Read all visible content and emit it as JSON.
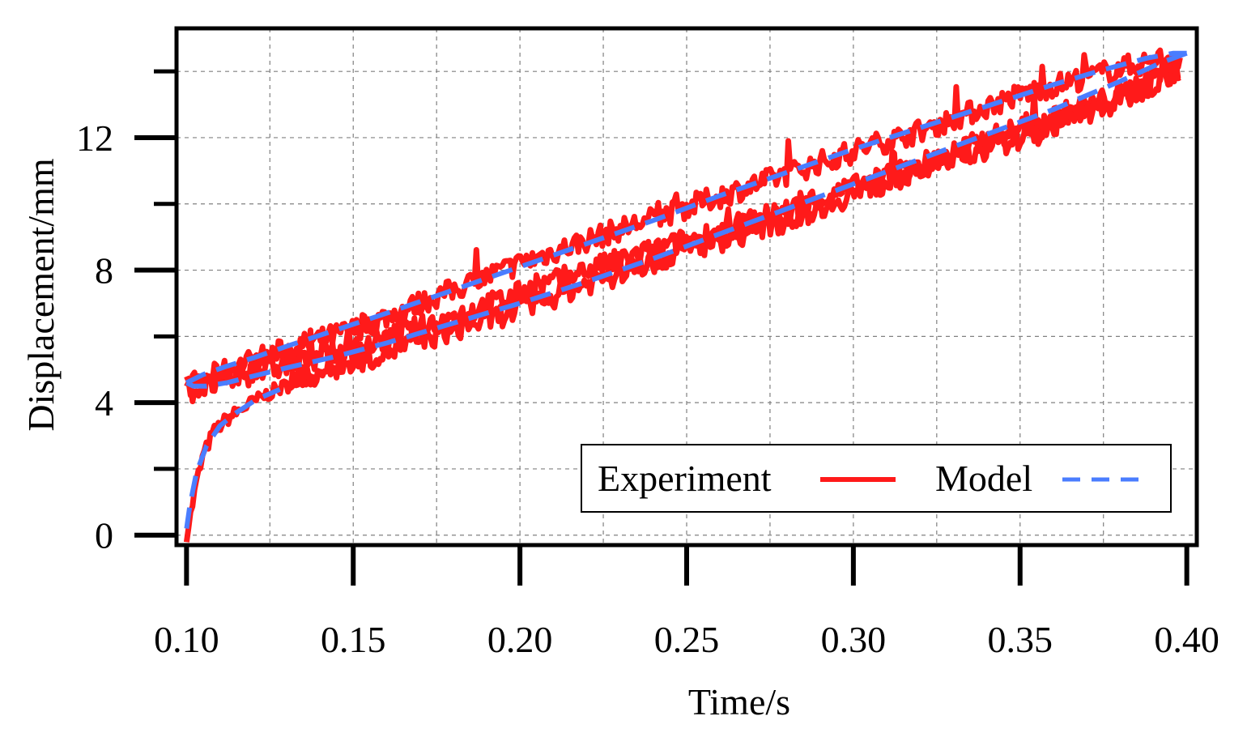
{
  "chart_data": {
    "type": "line",
    "title": "",
    "xlabel": "Time/s",
    "ylabel": "Displacement/mm",
    "xlim": [
      0.097,
      0.403
    ],
    "ylim": [
      -0.3,
      15.3
    ],
    "xticks": [
      0.1,
      0.15,
      0.2,
      0.25,
      0.3,
      0.35,
      0.4
    ],
    "xtick_labels": [
      "0.10",
      "0.15",
      "0.20",
      "0.25",
      "0.30",
      "0.35",
      "0.40"
    ],
    "yticks_major": [
      0,
      4,
      8,
      12
    ],
    "ytick_labels": [
      "0",
      "4",
      "8",
      "12"
    ],
    "yticks_minor": [
      2,
      6,
      10,
      14
    ],
    "grid": true,
    "legend": {
      "position": "bottom-right",
      "columns": 2
    },
    "series": [
      {
        "name": "Experiment",
        "style": "solid",
        "color": "#ff1a1a",
        "noise_mm": 0.35,
        "segments": [
          {
            "x": [
              0.1,
              0.101,
              0.103,
              0.105,
              0.108,
              0.112,
              0.118,
              0.125,
              0.132,
              0.14
            ],
            "y": [
              0.0,
              0.5,
              1.6,
              2.4,
              3.1,
              3.5,
              3.9,
              4.3,
              4.6,
              4.9
            ]
          },
          {
            "x": [
              0.1,
              0.12,
              0.15,
              0.18,
              0.2,
              0.22,
              0.25,
              0.28,
              0.3,
              0.32,
              0.35,
              0.38,
              0.398
            ],
            "y": [
              4.5,
              5.3,
              6.2,
              7.4,
              8.2,
              8.9,
              9.9,
              10.9,
              11.6,
              12.2,
              13.3,
              14.1,
              14.5
            ]
          },
          {
            "x": [
              0.1,
              0.12,
              0.15,
              0.18,
              0.2,
              0.22,
              0.25,
              0.28,
              0.3,
              0.32,
              0.35,
              0.38,
              0.398
            ],
            "y": [
              4.3,
              4.9,
              5.6,
              6.6,
              7.3,
              8.0,
              8.9,
              9.8,
              10.5,
              11.2,
              12.3,
              13.3,
              14.3
            ]
          },
          {
            "x": [
              0.13,
              0.15,
              0.18,
              0.2,
              0.22,
              0.25,
              0.28,
              0.3,
              0.32,
              0.35,
              0.38,
              0.398
            ],
            "y": [
              4.6,
              5.2,
              6.2,
              6.8,
              7.6,
              8.6,
              9.5,
              10.3,
              11.0,
              12.0,
              13.1,
              14.1
            ]
          }
        ]
      },
      {
        "name": "Model",
        "style": "dashed",
        "color": "#4a7dff",
        "segments": [
          {
            "x": [
              0.1,
              0.101,
              0.103,
              0.106,
              0.11,
              0.115,
              0.121,
              0.128
            ],
            "y": [
              0.2,
              0.9,
              1.9,
              2.7,
              3.3,
              3.7,
              4.1,
              4.4
            ]
          },
          {
            "x": [
              0.1,
              0.105,
              0.112,
              0.12,
              0.13,
              0.145,
              0.16,
              0.18,
              0.2,
              0.22,
              0.24,
              0.26,
              0.28,
              0.3,
              0.32,
              0.34,
              0.36,
              0.375,
              0.388,
              0.396,
              0.4
            ],
            "y": [
              4.6,
              4.85,
              5.1,
              5.35,
              5.7,
              6.2,
              6.7,
              7.4,
              8.1,
              8.8,
              9.5,
              10.25,
              10.95,
              11.65,
              12.3,
              12.95,
              13.6,
              14.05,
              14.4,
              14.55,
              14.55
            ]
          },
          {
            "x": [
              0.4,
              0.392,
              0.38,
              0.36,
              0.34,
              0.32,
              0.3,
              0.28,
              0.26,
              0.24,
              0.22,
              0.2,
              0.18,
              0.16,
              0.145,
              0.13,
              0.12,
              0.112,
              0.106,
              0.102,
              0.1
            ],
            "y": [
              14.55,
              14.25,
              13.7,
              12.85,
              12.1,
              11.35,
              10.6,
              9.85,
              9.1,
              8.35,
              7.65,
              7.0,
              6.4,
              5.8,
              5.4,
              5.05,
              4.8,
              4.6,
              4.5,
              4.5,
              4.6
            ]
          }
        ]
      }
    ]
  }
}
